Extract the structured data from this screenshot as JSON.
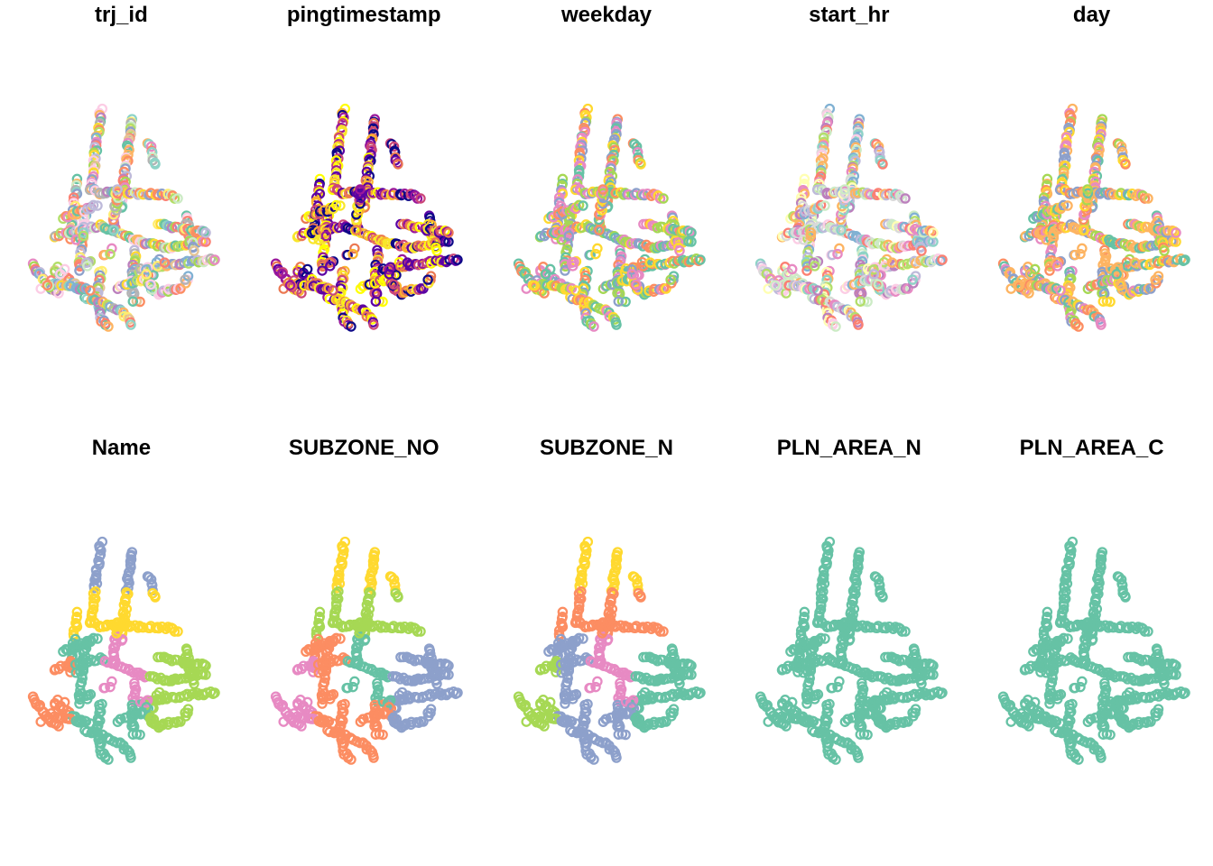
{
  "figure": {
    "type": "small-multiples-point-map",
    "rows": 2,
    "columns": 5
  },
  "palettes": {
    "set2": [
      "#66c2a5",
      "#fc8d62",
      "#8da0cb",
      "#e78ac3",
      "#a6d854",
      "#ffd92f"
    ],
    "multi": [
      "#66c2a5",
      "#fc8d62",
      "#8da0cb",
      "#e78ac3",
      "#a6d854",
      "#ffd92f",
      "#e5c494",
      "#b3b3b3",
      "#8dd3c7",
      "#fb8072",
      "#bebada",
      "#80b1d3",
      "#fdb462",
      "#b3de69",
      "#fccde5",
      "#bc80bd",
      "#ccebc5",
      "#ffed6f"
    ],
    "time": [
      "#0d0887",
      "#5b02a3",
      "#9a179b",
      "#cb4678",
      "#eb7852",
      "#fbb32f",
      "#f8e62b",
      "#ffff00"
    ],
    "weekday": [
      "#66c2a5",
      "#a6d854",
      "#ffd92f",
      "#fc8d62",
      "#8da0cb",
      "#e78ac3"
    ],
    "start_hr": [
      "#8dd3c7",
      "#ffffb3",
      "#bebada",
      "#fb8072",
      "#80b1d3",
      "#fdb462",
      "#b3de69",
      "#fccde5",
      "#d9d9d9",
      "#bc80bd",
      "#ccebc5",
      "#e78ac3"
    ],
    "day": [
      "#fdb462",
      "#fdb462",
      "#fdb462",
      "#66c2a5",
      "#a6d854",
      "#ffd92f",
      "#8da0cb",
      "#e78ac3",
      "#fc8d62"
    ],
    "single": [
      "#66c2a5"
    ]
  },
  "panels": [
    {
      "title": "trj_id",
      "palette": "multi",
      "mode": "random"
    },
    {
      "title": "pingtimestamp",
      "palette": "time",
      "mode": "random"
    },
    {
      "title": "weekday",
      "palette": "weekday",
      "mode": "random"
    },
    {
      "title": "start_hr",
      "palette": "start_hr",
      "mode": "random"
    },
    {
      "title": "day",
      "palette": "day",
      "mode": "random"
    },
    {
      "title": "Name",
      "palette": "set2",
      "mode": "region",
      "region_colors": [
        2,
        5,
        1,
        4,
        3,
        0
      ]
    },
    {
      "title": "SUBZONE_NO",
      "palette": "set2",
      "mode": "region",
      "region_colors": [
        5,
        4,
        3,
        2,
        0,
        1
      ]
    },
    {
      "title": "SUBZONE_N",
      "palette": "set2",
      "mode": "region",
      "region_colors": [
        5,
        1,
        4,
        0,
        3,
        2
      ]
    },
    {
      "title": "PLN_AREA_N",
      "palette": "single",
      "mode": "region",
      "region_colors": [
        0,
        0,
        0,
        0,
        0,
        0
      ]
    },
    {
      "title": "PLN_AREA_C",
      "palette": "single",
      "mode": "region",
      "region_colors": [
        0,
        0,
        0,
        0,
        0,
        0
      ]
    }
  ]
}
